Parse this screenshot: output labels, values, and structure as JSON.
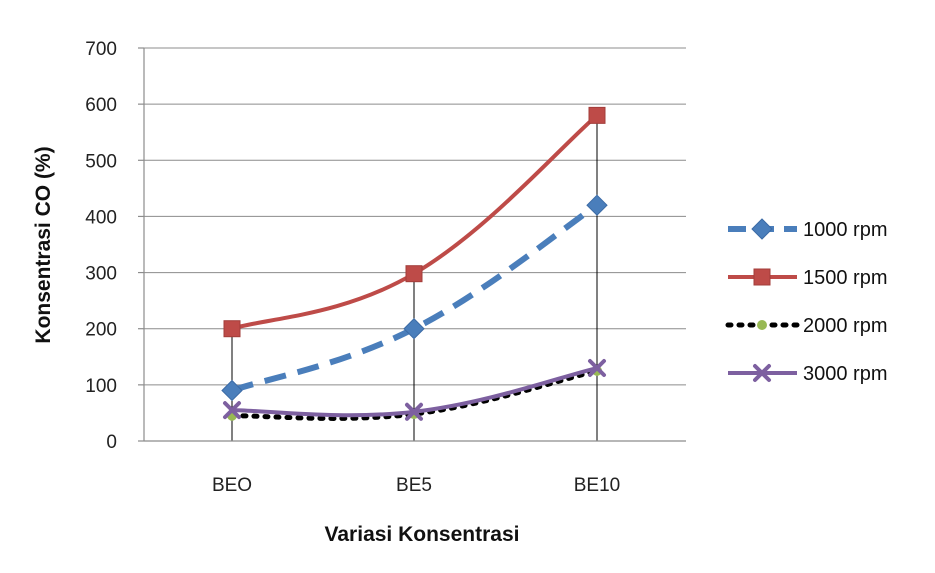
{
  "chart_data": {
    "type": "line",
    "title": "",
    "xlabel": "Variasi Konsentrasi",
    "ylabel": "Konsentrasi CO (%)",
    "categories": [
      "BEO",
      "BE5",
      "BE10"
    ],
    "ylim": [
      0,
      700
    ],
    "yticks": [
      "0",
      "100",
      "200",
      "300",
      "400",
      "500",
      "600",
      "700"
    ],
    "grid": "horizontal",
    "drop_lines": true,
    "legend_position": "right",
    "series": [
      {
        "name": "1000 rpm",
        "values": [
          90,
          200,
          420
        ],
        "color": "#4a7ebb",
        "line_style": "dashed",
        "marker": "diamond"
      },
      {
        "name": "1500 rpm",
        "values": [
          200,
          298,
          580
        ],
        "color": "#be4b48",
        "line_style": "solid",
        "marker": "square"
      },
      {
        "name": "2000 rpm",
        "values": [
          45,
          48,
          125
        ],
        "color": "#000000",
        "marker_color": "#98b954",
        "line_style": "dotted",
        "marker": "circle"
      },
      {
        "name": "3000 rpm",
        "values": [
          55,
          52,
          130
        ],
        "color": "#7d60a0",
        "line_style": "solid",
        "marker": "x"
      }
    ]
  }
}
